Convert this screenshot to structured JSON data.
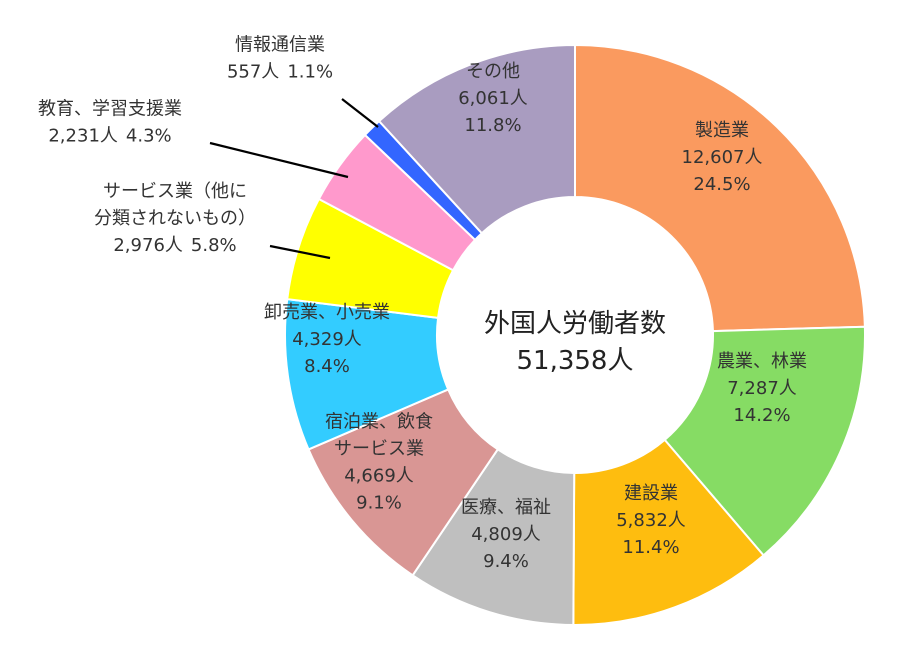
{
  "chart_data": {
    "type": "pie",
    "center": {
      "title": "外国人労働者数",
      "value": "51,358人"
    },
    "slices": [
      {
        "category": "製造業",
        "count": "12,607人",
        "percent": "24.5%",
        "value": 12607,
        "color": "#FA9A5F"
      },
      {
        "category": "農業、林業",
        "count": "7,287人",
        "percent": "14.2%",
        "value": 7287,
        "color": "#86DC64"
      },
      {
        "category": "建設業",
        "count": "5,832人",
        "percent": "11.4%",
        "value": 5832,
        "color": "#FEBD0F"
      },
      {
        "category": "医療、福祉",
        "count": "4,809人",
        "percent": "9.4%",
        "value": 4809,
        "color": "#BFBFBF"
      },
      {
        "category_lines": [
          "宿泊業、飲食",
          "サービス業"
        ],
        "count": "4,669人",
        "percent": "9.1%",
        "value": 4669,
        "color": "#D99694"
      },
      {
        "category": "卸売業、小売業",
        "count": "4,329人",
        "percent": "8.4%",
        "value": 4329,
        "color": "#33CCFF"
      },
      {
        "category_lines": [
          "サービス業（他に",
          "分類されないもの）"
        ],
        "count": "2,976人",
        "percent": "5.8%",
        "value": 2976,
        "color": "#FFFF00"
      },
      {
        "category": "教育、学習支援業",
        "count": "2,231人",
        "percent": "4.3%",
        "value": 2231,
        "color": "#FF99CC"
      },
      {
        "category": "情報通信業",
        "count": "557人",
        "percent": "1.1%",
        "value": 557,
        "color": "#3366FF"
      },
      {
        "category": "その他",
        "count": "6,061人",
        "percent": "11.8%",
        "value": 6061,
        "color": "#A99CC0"
      }
    ]
  }
}
